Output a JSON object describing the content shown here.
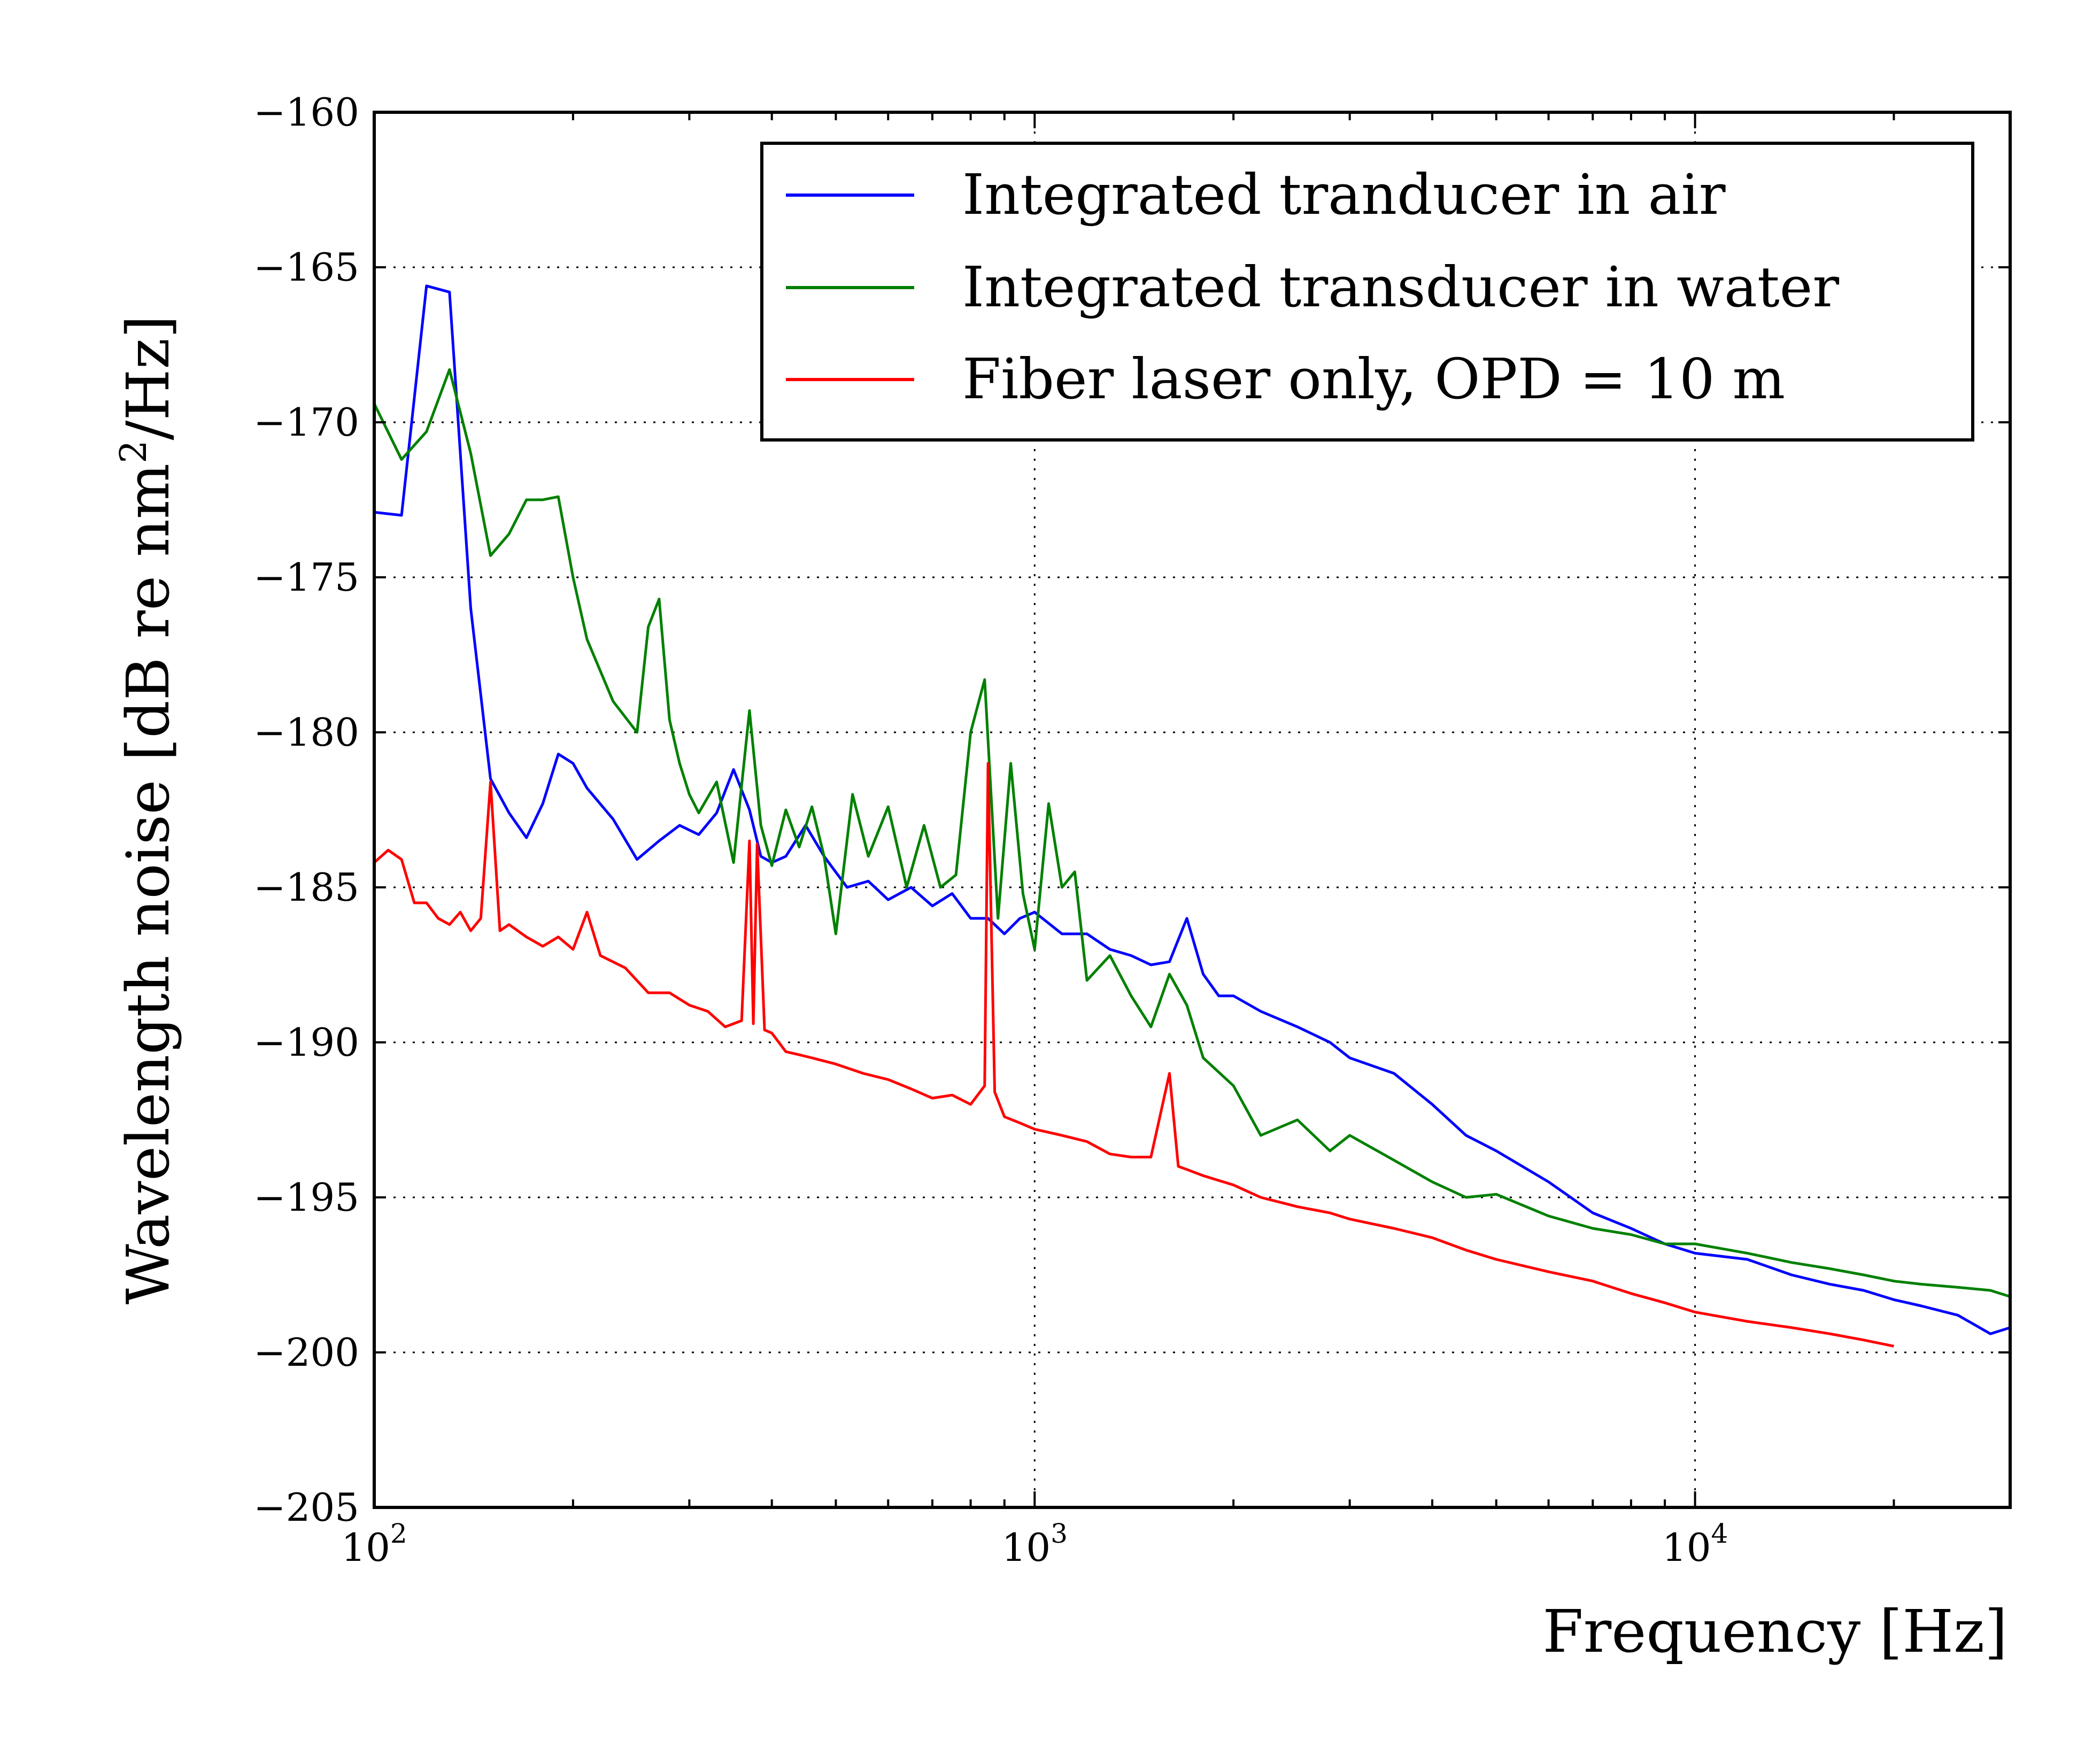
{
  "chart_data": {
    "type": "line",
    "title": "",
    "xlabel": "Frequency [Hz]",
    "ylabel_main": "Wavelength noise [dB re nm",
    "ylabel_sup": "2",
    "ylabel_tail": "/Hz]",
    "xscale": "log",
    "xlim": [
      100,
      30000
    ],
    "ylim": [
      -205,
      -160
    ],
    "x_ticks": [
      {
        "value": 100,
        "base": "10",
        "exp": "2"
      },
      {
        "value": 1000,
        "base": "10",
        "exp": "3"
      },
      {
        "value": 10000,
        "base": "10",
        "exp": "4"
      }
    ],
    "y_ticks": [
      -160,
      -165,
      -170,
      -175,
      -180,
      -185,
      -190,
      -195,
      -200,
      -205
    ],
    "y_tick_labels": [
      "−160",
      "−165",
      "−170",
      "−175",
      "−180",
      "−185",
      "−190",
      "−195",
      "−200",
      "−205"
    ],
    "grid": true,
    "legend_position": "top-right",
    "series": [
      {
        "name": "Integrated tranducer in air",
        "color": "#0000ff",
        "x": [
          100,
          110,
          120,
          130,
          140,
          150,
          160,
          170,
          180,
          190,
          200,
          210,
          230,
          250,
          270,
          290,
          310,
          330,
          350,
          370,
          385,
          400,
          420,
          450,
          480,
          520,
          560,
          600,
          650,
          700,
          750,
          800,
          850,
          900,
          950,
          1000,
          1100,
          1200,
          1300,
          1400,
          1500,
          1600,
          1700,
          1800,
          1900,
          2000,
          2200,
          2500,
          2800,
          3000,
          3500,
          4000,
          4500,
          5000,
          6000,
          7000,
          8000,
          9000,
          10000,
          12000,
          14000,
          16000,
          18000,
          20000,
          22000,
          25000,
          28000,
          30000
        ],
        "y": [
          -172.9,
          -173.0,
          -165.6,
          -165.8,
          -176.0,
          -181.5,
          -182.6,
          -183.4,
          -182.3,
          -180.7,
          -181.0,
          -181.8,
          -182.8,
          -184.1,
          -183.5,
          -183.0,
          -183.3,
          -182.6,
          -181.2,
          -182.5,
          -184.0,
          -184.2,
          -184.0,
          -183.0,
          -184.0,
          -185.0,
          -184.8,
          -185.4,
          -185.0,
          -185.6,
          -185.2,
          -186.0,
          -186.0,
          -186.5,
          -186.0,
          -185.8,
          -186.5,
          -186.5,
          -187.0,
          -187.2,
          -187.5,
          -187.4,
          -186.0,
          -187.8,
          -188.5,
          -188.5,
          -189.0,
          -189.5,
          -190.0,
          -190.5,
          -191.0,
          -192.0,
          -193.0,
          -193.5,
          -194.5,
          -195.5,
          -196.0,
          -196.5,
          -196.8,
          -197.0,
          -197.5,
          -197.8,
          -198.0,
          -198.3,
          -198.5,
          -198.8,
          -199.4,
          -199.2
        ]
      },
      {
        "name": "Integrated transducer in water",
        "color": "#008000",
        "x": [
          100,
          110,
          120,
          130,
          140,
          150,
          160,
          170,
          180,
          190,
          200,
          210,
          230,
          250,
          260,
          270,
          280,
          290,
          300,
          310,
          330,
          350,
          370,
          385,
          400,
          420,
          440,
          460,
          480,
          500,
          530,
          560,
          600,
          640,
          680,
          720,
          760,
          800,
          840,
          880,
          920,
          960,
          1000,
          1050,
          1100,
          1150,
          1200,
          1300,
          1400,
          1500,
          1600,
          1700,
          1800,
          2000,
          2200,
          2500,
          2800,
          3000,
          3500,
          4000,
          4500,
          5000,
          6000,
          7000,
          8000,
          9000,
          10000,
          12000,
          14000,
          16000,
          18000,
          20000,
          22000,
          25000,
          28000,
          30000
        ],
        "y": [
          -169.4,
          -171.2,
          -170.3,
          -168.3,
          -171.0,
          -174.3,
          -173.6,
          -172.5,
          -172.5,
          -172.4,
          -175.0,
          -177.0,
          -179.0,
          -180.0,
          -176.6,
          -175.7,
          -179.6,
          -181.0,
          -182.0,
          -182.6,
          -181.6,
          -184.2,
          -179.3,
          -183.0,
          -184.3,
          -182.5,
          -183.7,
          -182.4,
          -184.0,
          -186.5,
          -182.0,
          -184.0,
          -182.4,
          -185.0,
          -183.0,
          -185.0,
          -184.6,
          -180.0,
          -178.3,
          -186.0,
          -181.0,
          -185.2,
          -187.0,
          -182.3,
          -185.0,
          -184.5,
          -188.0,
          -187.2,
          -188.5,
          -189.5,
          -187.8,
          -188.8,
          -190.5,
          -191.4,
          -193.0,
          -192.5,
          -193.5,
          -193.0,
          -193.8,
          -194.5,
          -195.0,
          -194.9,
          -195.6,
          -196.0,
          -196.2,
          -196.5,
          -196.5,
          -196.8,
          -197.1,
          -197.3,
          -197.5,
          -197.7,
          -197.8,
          -197.9,
          -198.0,
          -198.2
        ]
      },
      {
        "name": "Fiber laser only, OPD = 10 m",
        "color": "#ff0000",
        "x": [
          100,
          105,
          110,
          115,
          120,
          125,
          130,
          135,
          140,
          145,
          150,
          155,
          160,
          170,
          180,
          190,
          200,
          210,
          220,
          240,
          260,
          280,
          300,
          320,
          340,
          360,
          370,
          375,
          380,
          390,
          400,
          420,
          440,
          460,
          500,
          550,
          600,
          650,
          700,
          750,
          800,
          840,
          850,
          870,
          900,
          950,
          1000,
          1100,
          1200,
          1300,
          1400,
          1500,
          1600,
          1650,
          1700,
          1800,
          2000,
          2200,
          2500,
          2800,
          3000,
          3500,
          4000,
          4500,
          5000,
          6000,
          7000,
          8000,
          9000,
          10000,
          12000,
          14000,
          16000,
          18000,
          20000
        ],
        "y": [
          -184.2,
          -183.8,
          -184.1,
          -185.5,
          -185.5,
          -186.0,
          -186.2,
          -185.8,
          -186.4,
          -186.0,
          -181.6,
          -186.4,
          -186.2,
          -186.6,
          -186.9,
          -186.6,
          -187.0,
          -185.8,
          -187.2,
          -187.6,
          -188.4,
          -188.4,
          -188.8,
          -189.0,
          -189.5,
          -189.3,
          -183.5,
          -189.4,
          -183.6,
          -189.6,
          -189.7,
          -190.3,
          -190.4,
          -190.5,
          -190.7,
          -191.0,
          -191.2,
          -191.5,
          -191.8,
          -191.7,
          -192.0,
          -191.4,
          -181.0,
          -191.6,
          -192.4,
          -192.6,
          -192.8,
          -193.0,
          -193.2,
          -193.6,
          -193.7,
          -193.7,
          -191.0,
          -194.0,
          -194.1,
          -194.3,
          -194.6,
          -195.0,
          -195.3,
          -195.5,
          -195.7,
          -196.0,
          -196.3,
          -196.7,
          -197.0,
          -197.4,
          -197.7,
          -198.1,
          -198.4,
          -198.7,
          -199.0,
          -199.2,
          -199.4,
          -199.6,
          -199.8
        ]
      }
    ]
  }
}
